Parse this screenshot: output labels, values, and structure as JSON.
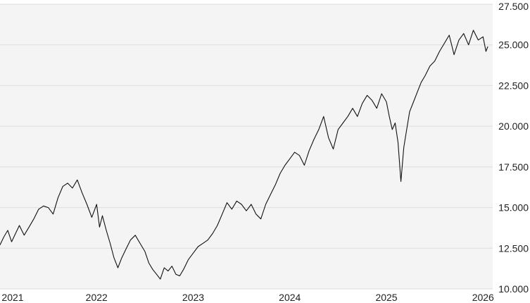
{
  "colors": {
    "plot_background": "#f4f4f4",
    "gridline": "#dddddd",
    "line": "#111111",
    "text": "#222222"
  },
  "chart_data": {
    "type": "line",
    "title": "",
    "xlabel": "",
    "ylabel": "",
    "grid": true,
    "legend": "none",
    "y_axis_position": "right",
    "xlim": [
      2021.0,
      2026.1
    ],
    "ylim": [
      10000,
      27500
    ],
    "x_ticks": [
      {
        "value": 2021,
        "label": "2021"
      },
      {
        "value": 2022,
        "label": "2022"
      },
      {
        "value": 2023,
        "label": "2023"
      },
      {
        "value": 2024,
        "label": "2024"
      },
      {
        "value": 2025,
        "label": "2025"
      },
      {
        "value": 2026,
        "label": "2026"
      }
    ],
    "y_ticks": [
      {
        "value": 10000,
        "label": "10.000"
      },
      {
        "value": 12500,
        "label": "12.500"
      },
      {
        "value": 15000,
        "label": "15.000"
      },
      {
        "value": 17500,
        "label": "17.500"
      },
      {
        "value": 20000,
        "label": "20.000"
      },
      {
        "value": 22500,
        "label": "22.500"
      },
      {
        "value": 25000,
        "label": "25.000"
      },
      {
        "value": 27500,
        "label": "27.500"
      }
    ],
    "series": [
      {
        "x": [
          2021.0,
          2021.04,
          2021.08,
          2021.12,
          2021.16,
          2021.2,
          2021.25,
          2021.3,
          2021.35,
          2021.4,
          2021.45,
          2021.5,
          2021.55,
          2021.6,
          2021.65,
          2021.7,
          2021.75,
          2021.8,
          2021.85,
          2021.9,
          2021.95,
          2022.0,
          2022.03,
          2022.06,
          2022.1,
          2022.14,
          2022.18,
          2022.22,
          2022.26,
          2022.3,
          2022.35,
          2022.4,
          2022.45,
          2022.5,
          2022.54,
          2022.58,
          2022.62,
          2022.66,
          2022.7,
          2022.74,
          2022.78,
          2022.82,
          2022.86,
          2022.9,
          2022.95,
          2023.0,
          2023.05,
          2023.1,
          2023.15,
          2023.2,
          2023.25,
          2023.3,
          2023.35,
          2023.4,
          2023.45,
          2023.5,
          2023.55,
          2023.6,
          2023.65,
          2023.7,
          2023.75,
          2023.8,
          2023.85,
          2023.9,
          2023.95,
          2024.0,
          2024.05,
          2024.1,
          2024.15,
          2024.2,
          2024.25,
          2024.3,
          2024.35,
          2024.4,
          2024.45,
          2024.5,
          2024.55,
          2024.6,
          2024.65,
          2024.7,
          2024.75,
          2024.8,
          2024.85,
          2024.9,
          2024.95,
          2025.0,
          2025.03,
          2025.06,
          2025.09,
          2025.12,
          2025.15,
          2025.18,
          2025.21,
          2025.24,
          2025.28,
          2025.32,
          2025.36,
          2025.4,
          2025.45,
          2025.5,
          2025.55,
          2025.6,
          2025.65,
          2025.7,
          2025.75,
          2025.8,
          2025.85,
          2025.9,
          2025.95,
          2026.0,
          2026.03,
          2026.05
        ],
        "y": [
          12700,
          13200,
          13600,
          12900,
          13400,
          13900,
          13300,
          13800,
          14300,
          14900,
          15100,
          15000,
          14600,
          15600,
          16300,
          16500,
          16200,
          16700,
          15900,
          15200,
          14400,
          15200,
          13800,
          14500,
          13600,
          12800,
          11900,
          11300,
          11900,
          12400,
          13000,
          13300,
          12800,
          12300,
          11600,
          11200,
          10900,
          10600,
          11300,
          11100,
          11400,
          10900,
          10800,
          11200,
          11800,
          12200,
          12600,
          12800,
          13000,
          13400,
          13900,
          14600,
          15300,
          14900,
          15400,
          15200,
          14800,
          15200,
          14600,
          14300,
          15200,
          15800,
          16400,
          17100,
          17600,
          18000,
          18400,
          18200,
          17600,
          18500,
          19200,
          19800,
          20600,
          19300,
          18600,
          19800,
          20200,
          20600,
          21100,
          20600,
          21400,
          21900,
          21600,
          21100,
          22000,
          21500,
          20600,
          19800,
          20200,
          19000,
          16600,
          18700,
          19800,
          20900,
          21500,
          22100,
          22700,
          23100,
          23700,
          24000,
          24600,
          25100,
          25600,
          24400,
          25300,
          25700,
          25000,
          25900,
          25300,
          25500,
          24600,
          24900
        ]
      }
    ]
  }
}
